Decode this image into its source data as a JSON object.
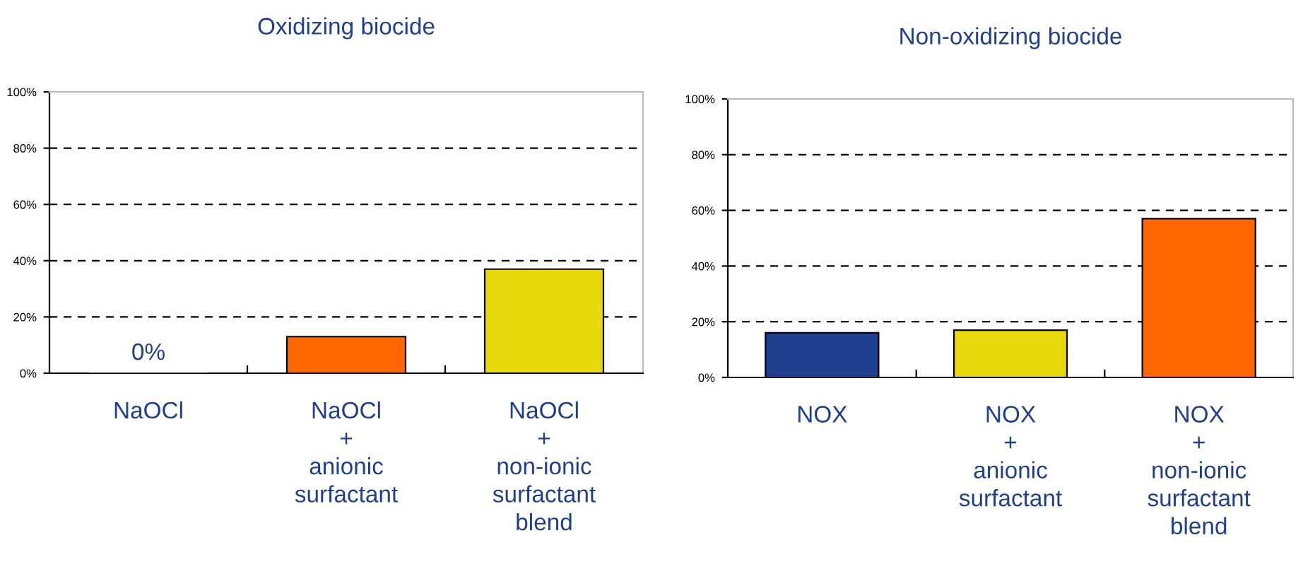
{
  "chart_data": [
    {
      "type": "bar",
      "title": "Oxidizing biocide",
      "categories": [
        "NaOCl",
        "NaOCl\n+\nanionic\nsurfactant",
        "NaOCl\n+\nnon-ionic\nsurfactant\nblend"
      ],
      "values": [
        0,
        13,
        37
      ],
      "colors": [
        "#1f3f8f",
        "#ff6600",
        "#e8d80c"
      ],
      "value_labels": [
        "0%",
        null,
        null
      ],
      "ylim": [
        0,
        100
      ],
      "yticks": [
        {
          "value": 0,
          "label": "0%"
        },
        {
          "value": 20,
          "label": "20%"
        },
        {
          "value": 40,
          "label": "40%"
        },
        {
          "value": 60,
          "label": "60%"
        },
        {
          "value": 80,
          "label": "80%"
        },
        {
          "value": 100,
          "label": "100%"
        }
      ],
      "grid": "y"
    },
    {
      "type": "bar",
      "title": "Non-oxidizing biocide",
      "categories": [
        "NOX",
        "NOX\n+\nanionic\nsurfactant",
        "NOX\n+\nnon-ionic\nsurfactant\nblend"
      ],
      "values": [
        16,
        17,
        57
      ],
      "colors": [
        "#1f3f8f",
        "#e8d80c",
        "#ff6600"
      ],
      "ylim": [
        0,
        100
      ],
      "yticks": [
        {
          "value": 0,
          "label": "0%"
        },
        {
          "value": 20,
          "label": "20%"
        },
        {
          "value": 40,
          "label": "40%"
        },
        {
          "value": 60,
          "label": "60%"
        },
        {
          "value": 80,
          "label": "80%"
        },
        {
          "value": 100,
          "label": "100%"
        }
      ],
      "grid": "y"
    }
  ]
}
